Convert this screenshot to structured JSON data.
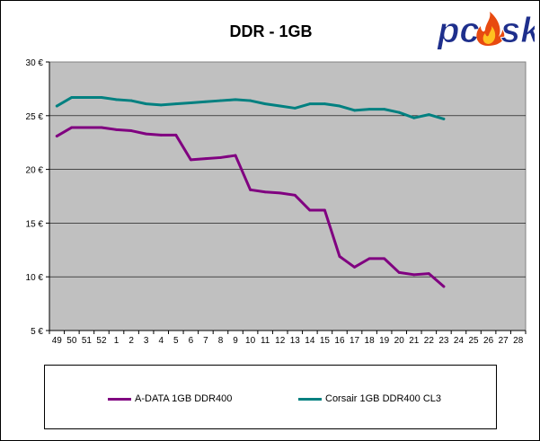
{
  "chart_data": {
    "type": "line",
    "title": "DDR - 1GB",
    "xlabel": "",
    "ylabel": "",
    "categories": [
      "49",
      "50",
      "51",
      "52",
      "1",
      "2",
      "3",
      "4",
      "5",
      "6",
      "7",
      "8",
      "9",
      "10",
      "11",
      "12",
      "13",
      "14",
      "15",
      "16",
      "17",
      "18",
      "19",
      "20",
      "21",
      "22",
      "23",
      "24",
      "25",
      "26",
      "27",
      "28"
    ],
    "ylim": [
      5,
      30
    ],
    "yticks": [
      5,
      10,
      15,
      20,
      25,
      30
    ],
    "ytick_labels": [
      "5 €",
      "10 €",
      "15 €",
      "20 €",
      "25 €",
      "30 €"
    ],
    "grid": true,
    "legend_position": "bottom",
    "series": [
      {
        "name": "A-DATA 1GB DDR400",
        "color": "#800080",
        "values": [
          23.1,
          23.9,
          23.9,
          23.9,
          23.7,
          23.6,
          23.3,
          23.2,
          23.2,
          20.9,
          21.0,
          21.1,
          21.3,
          18.1,
          17.9,
          17.8,
          17.6,
          16.2,
          16.2,
          11.9,
          10.9,
          11.7,
          11.7,
          10.4,
          10.2,
          10.3,
          9.1,
          null,
          null,
          null,
          null,
          null
        ]
      },
      {
        "name": "Corsair 1GB DDR400 CL3",
        "color": "#008080",
        "values": [
          25.9,
          26.7,
          26.7,
          26.7,
          26.5,
          26.4,
          26.1,
          26.0,
          26.1,
          26.2,
          26.3,
          26.4,
          26.5,
          26.4,
          26.1,
          25.9,
          25.7,
          26.1,
          26.1,
          25.9,
          25.5,
          25.6,
          25.6,
          25.3,
          24.8,
          25.1,
          24.7,
          null,
          null,
          null,
          null,
          null
        ]
      }
    ],
    "plot_background": "#c0c0c0",
    "gridline_color": "#808080"
  },
  "logo": {
    "text_left": "pc",
    "text_right": "sk",
    "colors": {
      "text": "#1e2f8c",
      "flame_outer": "#e84a10",
      "flame_inner": "#ffc020"
    }
  }
}
